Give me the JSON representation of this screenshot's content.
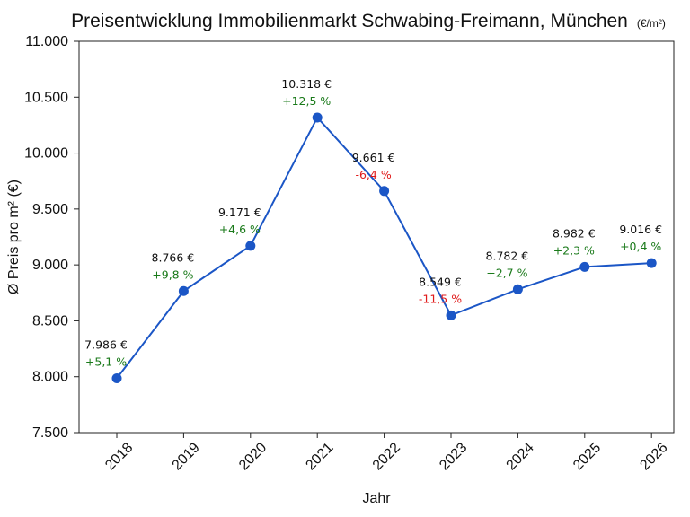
{
  "chart_data": {
    "type": "line",
    "title": "Preisentwicklung Immobilienmarkt Schwabing-Freimann, München",
    "title_unit": "(€/m²)",
    "xlabel": "Jahr",
    "ylabel": "Ø Preis pro m² (€)",
    "ylim": [
      7500,
      11000
    ],
    "yticks": [
      7500,
      8000,
      8500,
      9000,
      9500,
      10000,
      10500,
      11000
    ],
    "ytick_labels": [
      "7.500",
      "8.000",
      "8.500",
      "9.000",
      "9.500",
      "10.000",
      "10.500",
      "11.000"
    ],
    "categories": [
      "2018",
      "2019",
      "2020",
      "2021",
      "2022",
      "2023",
      "2024",
      "2025",
      "2026"
    ],
    "series": [
      {
        "values": [
          7986,
          8766,
          9171,
          10318,
          9661,
          8549,
          8782,
          8982,
          9016
        ],
        "color": "#1b56c6"
      }
    ],
    "price_labels": [
      "7.986 €",
      "8.766 €",
      "9.171 €",
      "10.318 €",
      "9.661 €",
      "8.549 €",
      "8.782 €",
      "8.982 €",
      "9.016 €"
    ],
    "change_labels": [
      "+5,1 %",
      "+9,8 %",
      "+4,6 %",
      "+12,5 %",
      "-6,4 %",
      "-11,5 %",
      "+2,7 %",
      "+2,3 %",
      "+0,4 %"
    ],
    "change_colors": [
      "#1a7a1a",
      "#1a7a1a",
      "#1a7a1a",
      "#1a7a1a",
      "#e01a1a",
      "#e01a1a",
      "#1a7a1a",
      "#1a7a1a",
      "#1a7a1a"
    ],
    "grid": false,
    "legend": "none"
  }
}
